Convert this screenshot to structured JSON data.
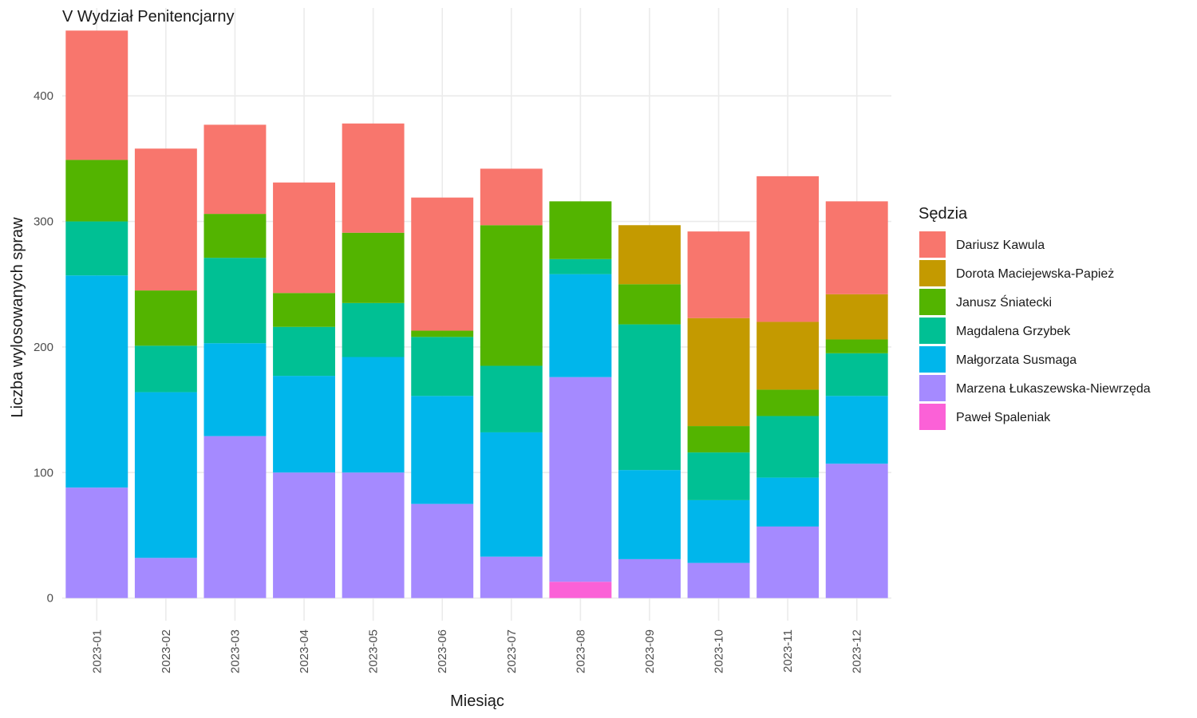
{
  "chart_data": {
    "type": "bar",
    "stacked": true,
    "title": "V Wydział Penitencjarny",
    "xlabel": "Miesiąc",
    "ylabel": "Liczba wylosowanych spraw",
    "ylim": [
      -18,
      470
    ],
    "yticks": [
      0,
      100,
      200,
      300,
      400
    ],
    "grid": true,
    "legend_position": "right",
    "legend_title": "Sędzia",
    "categories": [
      "2023-01",
      "2023-02",
      "2023-03",
      "2023-04",
      "2023-05",
      "2023-06",
      "2023-07",
      "2023-08",
      "2023-09",
      "2023-10",
      "2023-11",
      "2023-12"
    ],
    "stack_order": [
      "Paweł Spaleniak",
      "Marzena Łukaszewska-Niewrzęda",
      "Małgorzata Susmaga",
      "Magdalena Grzybek",
      "Janusz Śniatecki",
      "Dorota Maciejewska-Papież",
      "Dariusz Kawula"
    ],
    "series": [
      {
        "name": "Dariusz Kawula",
        "color": "#F8766D",
        "values": [
          103,
          113,
          71,
          88,
          87,
          106,
          45,
          0,
          0,
          69,
          116,
          74
        ]
      },
      {
        "name": "Dorota Maciejewska-Papież",
        "color": "#C49A00",
        "values": [
          0,
          0,
          0,
          0,
          0,
          0,
          0,
          0,
          47,
          86,
          54,
          36
        ]
      },
      {
        "name": "Janusz Śniatecki",
        "color": "#53B400",
        "values": [
          49,
          44,
          35,
          27,
          56,
          5,
          112,
          46,
          32,
          21,
          21,
          11
        ]
      },
      {
        "name": "Magdalena Grzybek",
        "color": "#00C094",
        "values": [
          43,
          37,
          68,
          39,
          43,
          47,
          53,
          12,
          116,
          38,
          49,
          34
        ]
      },
      {
        "name": "Małgorzata Susmaga",
        "color": "#00B6EB",
        "values": [
          169,
          132,
          74,
          77,
          92,
          86,
          99,
          82,
          71,
          50,
          39,
          54
        ]
      },
      {
        "name": "Marzena Łukaszewska-Niewrzęda",
        "color": "#A58AFF",
        "values": [
          88,
          32,
          129,
          100,
          100,
          75,
          33,
          163,
          31,
          28,
          57,
          107
        ]
      },
      {
        "name": "Paweł Spaleniak",
        "color": "#FB61D7",
        "values": [
          0,
          0,
          0,
          0,
          0,
          0,
          0,
          13,
          0,
          0,
          0,
          0
        ]
      }
    ]
  }
}
